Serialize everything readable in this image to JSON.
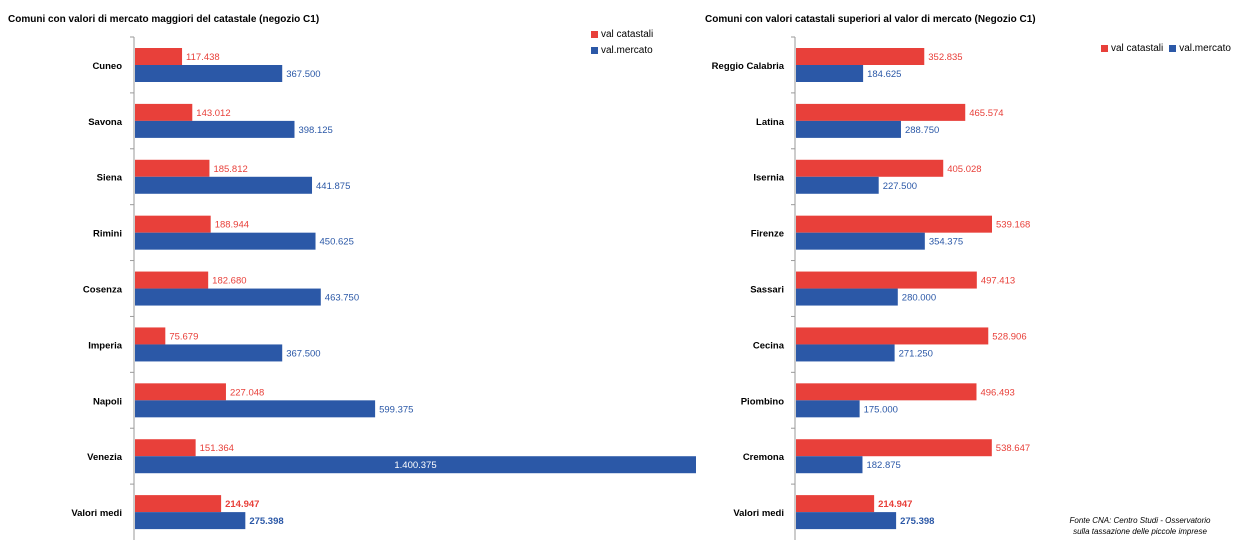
{
  "colors": {
    "catastali": "#e8403a",
    "mercato": "#2b58a7"
  },
  "legend": {
    "catastali": "val catastali",
    "mercato": "val.mercato"
  },
  "source_note": [
    "Fonte CNA: Centro Studi - Osservatorio",
    "sulla tassazione delle piccole imprese"
  ],
  "chart_data": [
    {
      "type": "bar",
      "orientation": "horizontal",
      "title": "Comuni con valori di mercato maggiori del catastale  (negozio  C1)",
      "categories": [
        "Cuneo",
        "Savona",
        "Siena",
        "Rimini",
        "Cosenza",
        "Imperia",
        "Napoli",
        "Venezia",
        "Valori medi"
      ],
      "series": [
        {
          "name": "val catastali",
          "values": [
            117.438,
            143.012,
            185.812,
            188.944,
            182.68,
            75.679,
            227.048,
            151.364,
            214.947
          ],
          "labels": [
            "117.438",
            "143.012",
            "185.812",
            "188.944",
            "182.680",
            "75.679",
            "227.048",
            "151.364",
            "214.947"
          ]
        },
        {
          "name": "val.mercato",
          "values": [
            367.5,
            398.125,
            441.875,
            450.625,
            463.75,
            367.5,
            599.375,
            1400.375,
            275.398
          ],
          "labels": [
            "367.500",
            "398.125",
            "441.875",
            "450.625",
            "463.750",
            "367.500",
            "599.375",
            "1.400.375",
            "275.398"
          ]
        }
      ],
      "legend_position": "top-right",
      "grid": false
    },
    {
      "type": "bar",
      "orientation": "horizontal",
      "title": "Comuni con valori catastali superiori al valor di mercato  (Negozio C1)",
      "categories": [
        "Reggio Calabria",
        "Latina",
        "Isernia",
        "Firenze",
        "Sassari",
        "Cecina",
        "Piombino",
        "Cremona",
        "Valori medi"
      ],
      "series": [
        {
          "name": "val catastali",
          "values": [
            352.835,
            465.574,
            405.028,
            539.168,
            497.413,
            528.906,
            496.493,
            538.647,
            214.947
          ],
          "labels": [
            "352.835",
            "465.574",
            "405.028",
            "539.168",
            "497.413",
            "528.906",
            "496.493",
            "538.647",
            "214.947"
          ]
        },
        {
          "name": "val.mercato",
          "values": [
            184.625,
            288.75,
            227.5,
            354.375,
            280.0,
            271.25,
            175.0,
            182.875,
            275.398
          ],
          "labels": [
            "184.625",
            "288.750",
            "227.500",
            "354.375",
            "280.000",
            "271.250",
            "175.000",
            "182.875",
            "275.398"
          ]
        }
      ],
      "legend_position": "top-right",
      "grid": false
    }
  ]
}
